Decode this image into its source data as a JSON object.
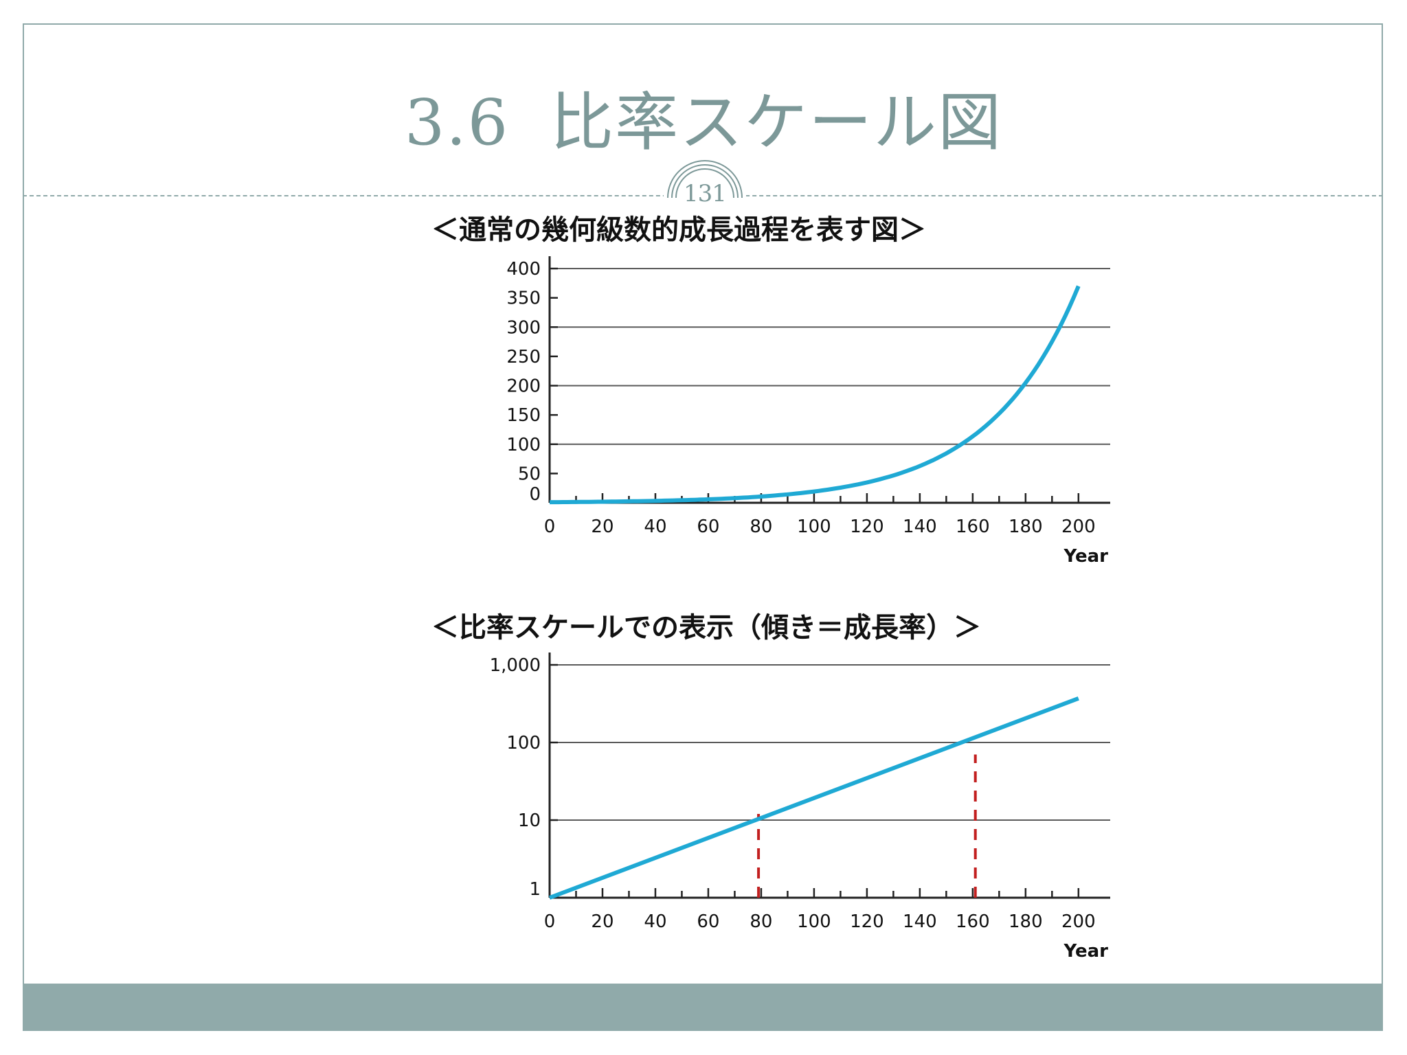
{
  "slide": {
    "section_number": "3.6",
    "title": "比率スケール図",
    "page_number": "131"
  },
  "colors": {
    "accent": "#7c9898",
    "band": "#90aaaa",
    "series": "#1fa9d4",
    "marker": "#c21f1f",
    "grid": "#5a5a5a"
  },
  "chart_data": [
    {
      "type": "line",
      "title": "＜通常の幾何級数的成長過程を表す図＞",
      "xlabel": "Year",
      "ylabel": "",
      "xlim": [
        0,
        200
      ],
      "ylim": [
        0,
        400
      ],
      "yscale": "linear",
      "x_ticks": [
        "0",
        "20",
        "40",
        "60",
        "80",
        "100",
        "120",
        "140",
        "160",
        "180",
        "200"
      ],
      "y_ticks": [
        "0",
        "50",
        "100",
        "150",
        "200",
        "250",
        "300",
        "350",
        "400"
      ],
      "grid_y": [
        0,
        100,
        200,
        300,
        400
      ],
      "series": [
        {
          "x": [
            0,
            20,
            40,
            60,
            80,
            100,
            120,
            140,
            160,
            180,
            200
          ],
          "y": [
            1,
            1.8,
            3.3,
            6,
            11,
            20,
            36,
            64,
            116,
            206,
            370
          ]
        }
      ]
    },
    {
      "type": "line",
      "title": "＜比率スケールでの表示（傾き＝成長率）＞",
      "xlabel": "Year",
      "ylabel": "",
      "xlim": [
        0,
        200
      ],
      "ylim": [
        1,
        1000
      ],
      "yscale": "log",
      "x_ticks": [
        "0",
        "20",
        "40",
        "60",
        "80",
        "100",
        "120",
        "140",
        "160",
        "180",
        "200"
      ],
      "y_ticks": [
        "1",
        "10",
        "100",
        "1,000"
      ],
      "grid_y": [
        10,
        100,
        1000
      ],
      "series": [
        {
          "x": [
            0,
            200
          ],
          "y": [
            1,
            370
          ]
        }
      ],
      "markers": [
        {
          "x": 79,
          "y_from": 1,
          "y_to": 12
        },
        {
          "x": 161,
          "y_from": 1,
          "y_to": 70
        }
      ]
    }
  ]
}
